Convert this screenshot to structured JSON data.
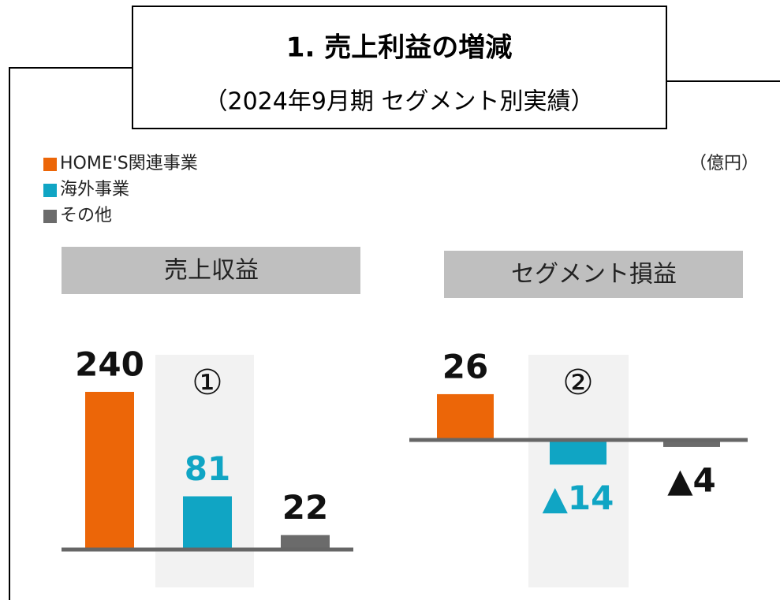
{
  "title": "1. 売上利益の増減",
  "subtitle": "（2024年9月期 セグメント別実績）",
  "unit": "（億円）",
  "legend": [
    {
      "name": "HOME'S関連事業",
      "color": "#ec6608"
    },
    {
      "name": "海外事業",
      "color": "#10a5c4"
    },
    {
      "name": "その他",
      "color": "#6b6b6b"
    }
  ],
  "chart_data": [
    {
      "type": "bar",
      "title": "売上収益",
      "annotation": "①",
      "highlight": 1,
      "values": [
        240,
        81,
        22
      ],
      "ylim": [
        0,
        300
      ]
    },
    {
      "type": "bar",
      "title": "セグメント損益",
      "annotation": "②",
      "highlight": 1,
      "values": [
        26,
        -14,
        -4
      ],
      "value_labels": [
        "26",
        "▲14",
        "▲4"
      ],
      "ylim": [
        -30,
        30
      ]
    }
  ]
}
